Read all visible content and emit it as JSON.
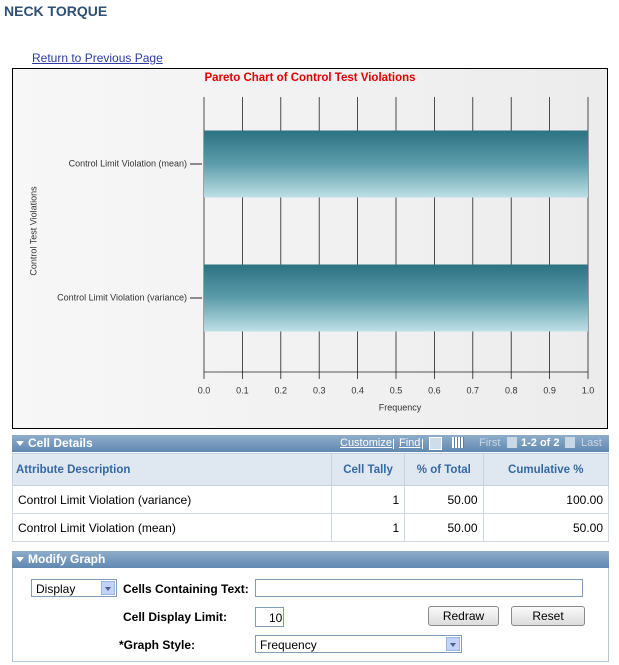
{
  "header": {
    "title": "NECK TORQUE",
    "link": "Return to Previous Page"
  },
  "chart_data": {
    "type": "bar",
    "orientation": "horizontal",
    "title": "Pareto Chart of Control Test Violations",
    "categories": [
      "Control Limit Violation (mean)",
      "Control Limit Violation (variance)"
    ],
    "values": [
      1,
      1
    ],
    "color": "#2c7282",
    "xlabel": "Frequency",
    "ylabel": "Control Test Violations",
    "xlim": [
      0,
      1
    ],
    "xticks": [
      {
        "value": 0,
        "label": "0.0"
      },
      0.1,
      0.2,
      0.3,
      0.4,
      0.5,
      0.6,
      0.7,
      0.8,
      0.9,
      {
        "value": 1,
        "label": "1.0"
      }
    ],
    "grid": true
  },
  "cell_details": {
    "title": "Cell Details",
    "toolbar": {
      "customize": "Customize",
      "find": "Find",
      "first": "First",
      "count": "1-2 of 2",
      "last": "Last"
    },
    "columns": [
      "Attribute Description",
      "Cell Tally",
      "% of Total",
      "Cumulative %"
    ],
    "rows": [
      [
        "Control Limit Violation (variance)",
        "1",
        "50.00",
        "100.00"
      ],
      [
        "Control Limit Violation (mean)",
        "1",
        "50.00",
        "50.00"
      ]
    ]
  },
  "modify_graph": {
    "title": "Modify Graph",
    "display_select": "Display",
    "cells_text_label": "Cells Containing Text:",
    "limit_label": "Cell Display Limit:",
    "limit_value": "10",
    "redraw": "Redraw",
    "reset": "Reset",
    "style_label": "*Graph Style:",
    "style_value": "Frequency"
  }
}
